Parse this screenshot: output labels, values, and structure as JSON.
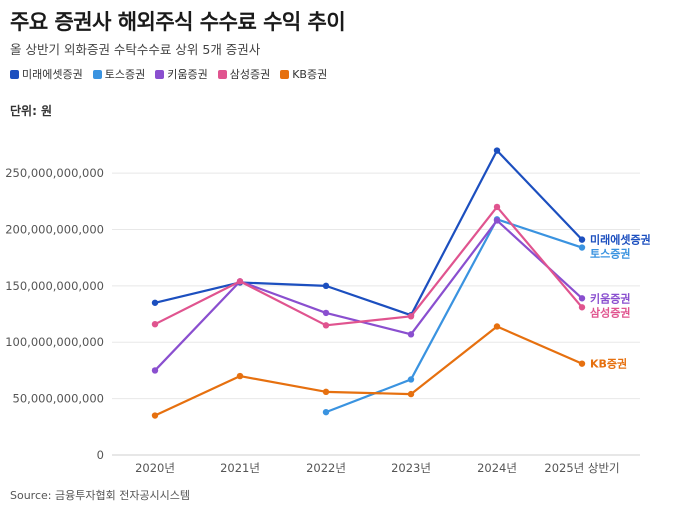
{
  "title": "주요 증권사 해외주식 수수료 수익 추이",
  "subtitle": "올 상반기 외화증권 수탁수수료 상위 5개 증권사",
  "unit_label": "단위: 원",
  "source": "Source: 금융투자협회 전자공시시스템",
  "chart_data": {
    "type": "line",
    "categories": [
      "2020년",
      "2021년",
      "2022년",
      "2023년",
      "2024년",
      "2025년 상반기"
    ],
    "ylim": [
      0,
      290000000000
    ],
    "yticks": [
      0,
      50000000000,
      100000000000,
      150000000000,
      200000000000,
      250000000000
    ],
    "ytick_labels": [
      "0",
      "50,000,000,000",
      "100,000,000,000",
      "150,000,000,000",
      "200,000,000,000",
      "250,000,000,000"
    ],
    "grid": true,
    "legend_placement": "top-left",
    "series": [
      {
        "name": "미래에셋증권",
        "color": "#1c4fbf",
        "values": [
          135000000000,
          153000000000,
          150000000000,
          124000000000,
          270000000000,
          191000000000
        ]
      },
      {
        "name": "토스증권",
        "color": "#3a93e0",
        "values": [
          null,
          null,
          38000000000,
          67000000000,
          209000000000,
          184000000000
        ]
      },
      {
        "name": "키움증권",
        "color": "#8a4fcf",
        "values": [
          75000000000,
          154000000000,
          126000000000,
          107000000000,
          208000000000,
          139000000000
        ]
      },
      {
        "name": "삼성증권",
        "color": "#e0548f",
        "values": [
          116000000000,
          154000000000,
          115000000000,
          123000000000,
          220000000000,
          131000000000
        ]
      },
      {
        "name": "KB증권",
        "color": "#e6700f",
        "values": [
          35000000000,
          70000000000,
          56000000000,
          54000000000,
          114000000000,
          81000000000
        ]
      }
    ]
  }
}
